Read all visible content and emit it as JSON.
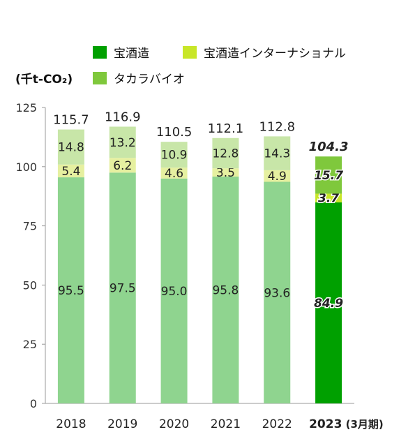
{
  "unit_label": "(千t-CO₂)",
  "legend": [
    {
      "label": "宝酒造",
      "color": "#00a000"
    },
    {
      "label": "宝酒造インターナショナル",
      "color": "#c8e628"
    },
    {
      "label": "タカラバイオ",
      "color": "#7fc83c"
    }
  ],
  "chart_data": {
    "type": "bar",
    "stacked": true,
    "categories": [
      "2018",
      "2019",
      "2020",
      "2021",
      "2022",
      "2023"
    ],
    "highlight_category_suffix": " (3月期)",
    "series": [
      {
        "name": "宝酒造",
        "values": [
          95.5,
          97.5,
          95.0,
          95.8,
          93.6,
          84.9
        ],
        "color": "#8fd48f",
        "highlight_color": "#00a000"
      },
      {
        "name": "宝酒造インターナショナル",
        "values": [
          5.4,
          6.2,
          4.6,
          3.5,
          4.9,
          3.7
        ],
        "color": "#e6f0a0",
        "highlight_color": "#c8e628"
      },
      {
        "name": "タカラバイオ",
        "values": [
          14.8,
          13.2,
          10.9,
          12.8,
          14.3,
          15.7
        ],
        "color": "#c8e6a8",
        "highlight_color": "#7fc83c"
      }
    ],
    "series_labels": [
      [
        "95.5",
        "97.5",
        "95.0",
        "95.8",
        "93.6",
        "84.9"
      ],
      [
        "5.4",
        "6.2",
        "4.6",
        "3.5",
        "4.9",
        "3.7"
      ],
      [
        "14.8",
        "13.2",
        "10.9",
        "12.8",
        "14.3",
        "15.7"
      ]
    ],
    "totals": [
      "115.7",
      "116.9",
      "110.5",
      "112.1",
      "112.8",
      "104.3"
    ],
    "highlight_index": 5,
    "ylim": [
      0,
      125
    ],
    "yticks": [
      0,
      25,
      50,
      75,
      100,
      125
    ],
    "legend_position": "top"
  }
}
